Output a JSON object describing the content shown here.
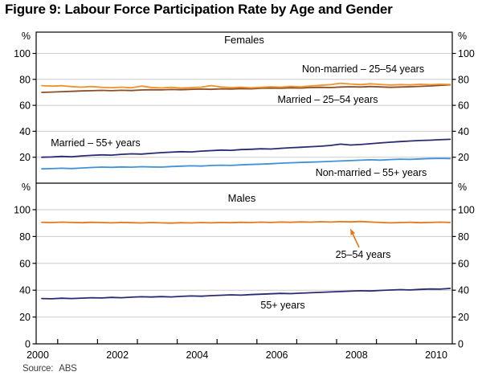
{
  "title": "Figure 9: Labour Force Participation Rate by Age and Gender",
  "source": {
    "label": "Source:",
    "value": "ABS"
  },
  "colors": {
    "grid": "#cbcbcb",
    "axis": "#000000",
    "orange_females": "#F0912B",
    "brown": "#8D4E24",
    "navy": "#2A2A72",
    "light_blue": "#4191D9",
    "orange_males": "#E6771A"
  },
  "x_axis": {
    "start": 2000.1,
    "step": 0.25,
    "tick_labels": [
      "2000",
      "2002",
      "2004",
      "2006",
      "2008",
      "2010"
    ],
    "tick_label_years": [
      2000,
      2002,
      2004,
      2006,
      2008,
      2010
    ],
    "minor_ticks": [
      2000.5,
      2001.5,
      2002.5,
      2003.5,
      2004.5,
      2005.5,
      2006.5,
      2007.5,
      2008.5,
      2009.5
    ],
    "xlim": [
      2000,
      2010.4
    ]
  },
  "chart_data": [
    {
      "type": "line",
      "title": "Females",
      "ylabel": "%",
      "ylim": [
        0,
        116
      ],
      "yticks": [
        20,
        40,
        60,
        80,
        100
      ],
      "grid": true,
      "series": [
        {
          "name": "Married – 25–54 years",
          "color": "#8D4E24",
          "values": [
            70.0,
            70.2,
            70.5,
            70.8,
            71.1,
            71.3,
            71.5,
            71.3,
            71.6,
            71.4,
            71.8,
            72.0,
            71.9,
            72.2,
            72.0,
            72.3,
            72.5,
            72.3,
            72.7,
            72.6,
            72.9,
            72.7,
            73.1,
            73.3,
            73.1,
            73.5,
            73.3,
            73.7,
            73.9,
            73.7,
            74.1,
            74.3,
            74.1,
            74.5,
            74.2,
            73.9,
            74.1,
            74.3,
            74.6,
            74.9,
            75.4,
            75.8
          ]
        },
        {
          "name": "Non-married – 25–54 years",
          "color": "#F0912B",
          "values": [
            75.2,
            74.8,
            75.1,
            74.4,
            74.0,
            74.5,
            73.9,
            73.6,
            74.0,
            73.5,
            74.8,
            73.8,
            73.4,
            73.9,
            73.3,
            73.7,
            74.0,
            75.2,
            74.1,
            73.7,
            74.0,
            73.5,
            73.9,
            74.3,
            74.0,
            74.6,
            74.2,
            74.9,
            75.4,
            75.9,
            77.0,
            76.4,
            76.0,
            76.6,
            76.1,
            75.6,
            76.0,
            75.7,
            76.2,
            75.9,
            76.2,
            76.1
          ]
        },
        {
          "name": "Married – 55+ years",
          "color": "#2A2A72",
          "values": [
            20.0,
            20.2,
            20.6,
            20.4,
            21.0,
            21.4,
            21.8,
            21.6,
            22.2,
            22.6,
            22.4,
            23.0,
            23.5,
            23.9,
            24.3,
            24.1,
            24.7,
            25.1,
            25.5,
            25.3,
            25.9,
            26.1,
            26.5,
            26.3,
            26.9,
            27.3,
            27.7,
            28.1,
            28.5,
            29.1,
            30.1,
            29.4,
            29.8,
            30.4,
            31.0,
            31.6,
            32.1,
            32.5,
            32.9,
            33.1,
            33.5,
            33.8
          ]
        },
        {
          "name": "Non-married – 55+ years",
          "color": "#4191D9",
          "values": [
            11.0,
            11.2,
            11.5,
            11.3,
            11.7,
            12.1,
            12.4,
            12.2,
            12.5,
            12.3,
            12.7,
            12.5,
            12.4,
            12.8,
            13.1,
            13.4,
            13.2,
            13.6,
            13.9,
            13.7,
            14.1,
            14.4,
            14.7,
            15.0,
            15.4,
            15.7,
            16.0,
            16.2,
            16.5,
            16.8,
            17.1,
            17.4,
            17.7,
            18.0,
            17.8,
            18.2,
            18.5,
            18.3,
            18.7,
            19.0,
            19.1,
            19.0
          ]
        }
      ]
    },
    {
      "type": "line",
      "title": "Males",
      "ylabel": "%",
      "ylim": [
        0,
        120
      ],
      "yticks": [
        0,
        20,
        40,
        60,
        80,
        100
      ],
      "grid": true,
      "series": [
        {
          "name": "25–54 years",
          "color": "#E6771A",
          "values": [
            90.6,
            90.4,
            90.7,
            90.5,
            90.3,
            90.6,
            90.4,
            90.2,
            90.5,
            90.3,
            90.1,
            90.4,
            90.2,
            90.0,
            90.3,
            90.1,
            90.4,
            90.2,
            90.5,
            90.3,
            90.6,
            90.4,
            90.7,
            90.5,
            90.8,
            90.6,
            90.9,
            90.7,
            91.0,
            90.8,
            91.1,
            90.9,
            91.2,
            90.8,
            90.5,
            90.2,
            90.4,
            90.6,
            90.3,
            90.5,
            90.7,
            90.5
          ]
        },
        {
          "name": "55+ years",
          "color": "#2A2A72",
          "values": [
            33.8,
            33.6,
            34.0,
            33.8,
            34.1,
            34.4,
            34.2,
            34.6,
            34.4,
            34.8,
            35.1,
            34.9,
            35.2,
            35.0,
            35.4,
            35.7,
            35.5,
            35.9,
            36.2,
            36.5,
            36.3,
            36.7,
            37.0,
            37.3,
            37.6,
            37.4,
            37.8,
            38.1,
            38.4,
            38.7,
            39.0,
            39.3,
            39.6,
            39.4,
            39.8,
            40.1,
            40.4,
            40.2,
            40.6,
            40.9,
            40.8,
            41.3
          ]
        }
      ]
    }
  ]
}
